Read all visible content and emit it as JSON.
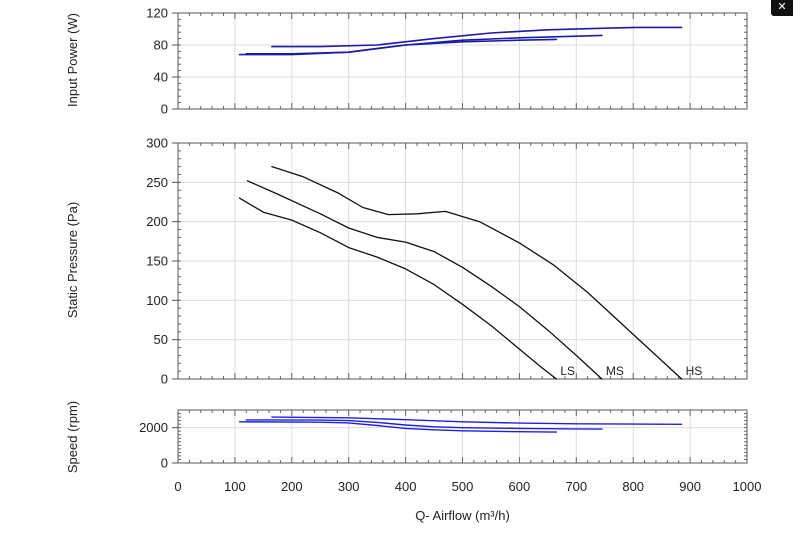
{
  "close_label": "✕",
  "chart_data": [
    {
      "type": "line",
      "id": "power",
      "ylabel": "Input Power (W)",
      "ylim": [
        0,
        120
      ],
      "yticks": [
        0,
        40,
        80,
        120
      ],
      "ytick_labels": [
        "0",
        "40",
        "80",
        "120"
      ],
      "xlim": [
        0,
        1000
      ],
      "series": [
        {
          "name": "HS",
          "x": [
            165,
            250,
            350,
            450,
            550,
            650,
            750,
            810,
            885
          ],
          "y": [
            78,
            78,
            80,
            88,
            95,
            99,
            101,
            102,
            102
          ]
        },
        {
          "name": "MS",
          "x": [
            120,
            200,
            300,
            400,
            500,
            600,
            700,
            745
          ],
          "y": [
            69,
            69,
            71,
            80,
            86,
            89,
            91,
            92
          ]
        },
        {
          "name": "LS",
          "x": [
            108,
            200,
            300,
            400,
            500,
            600,
            665
          ],
          "y": [
            68,
            68,
            71,
            80,
            84,
            86,
            87
          ]
        }
      ]
    },
    {
      "type": "line",
      "id": "pressure",
      "ylabel": "Static Pressure (Pa)",
      "ylim": [
        0,
        300
      ],
      "yticks": [
        0,
        50,
        100,
        150,
        200,
        250,
        300
      ],
      "ytick_labels": [
        "0",
        "50",
        "100",
        "150",
        "200",
        "250",
        "300"
      ],
      "xlim": [
        0,
        1000
      ],
      "curve_labels": [
        "LS",
        "MS",
        "HS"
      ],
      "series": [
        {
          "name": "LS",
          "x": [
            108,
            150,
            200,
            250,
            300,
            350,
            400,
            450,
            500,
            550,
            600,
            640,
            665
          ],
          "y": [
            230,
            212,
            202,
            186,
            167,
            155,
            140,
            120,
            95,
            68,
            38,
            14,
            0
          ]
        },
        {
          "name": "MS",
          "x": [
            122,
            175,
            250,
            300,
            350,
            400,
            450,
            500,
            550,
            600,
            650,
            700,
            745
          ],
          "y": [
            252,
            235,
            210,
            192,
            180,
            174,
            162,
            142,
            118,
            92,
            62,
            30,
            0
          ]
        },
        {
          "name": "HS",
          "x": [
            165,
            220,
            280,
            325,
            370,
            420,
            470,
            530,
            600,
            660,
            720,
            780,
            840,
            885
          ],
          "y": [
            270,
            257,
            237,
            218,
            209,
            210,
            213,
            200,
            173,
            145,
            110,
            70,
            30,
            0
          ]
        }
      ]
    },
    {
      "type": "line",
      "id": "speed",
      "ylabel": "Speed (rpm)",
      "ylim": [
        0,
        3000
      ],
      "yticks": [
        0,
        2000
      ],
      "ytick_labels": [
        "0",
        "2000"
      ],
      "xlim": [
        0,
        1000
      ],
      "xlabel": "Q- Airflow (m³/h)",
      "xticks": [
        0,
        100,
        200,
        300,
        400,
        500,
        600,
        700,
        800,
        900,
        1000
      ],
      "xtick_labels": [
        "0",
        "100",
        "200",
        "300",
        "400",
        "500",
        "600",
        "700",
        "800",
        "900",
        "1000"
      ],
      "series": [
        {
          "name": "HS",
          "x": [
            165,
            300,
            400,
            500,
            600,
            700,
            800,
            885
          ],
          "y": [
            2600,
            2560,
            2450,
            2330,
            2260,
            2220,
            2200,
            2190
          ]
        },
        {
          "name": "MS",
          "x": [
            120,
            250,
            300,
            350,
            400,
            450,
            500,
            600,
            700,
            745
          ],
          "y": [
            2440,
            2430,
            2400,
            2300,
            2150,
            2050,
            2000,
            1960,
            1930,
            1920
          ]
        },
        {
          "name": "LS",
          "x": [
            108,
            250,
            300,
            350,
            400,
            450,
            500,
            600,
            665
          ],
          "y": [
            2330,
            2310,
            2270,
            2120,
            1960,
            1880,
            1820,
            1770,
            1750
          ]
        }
      ]
    }
  ]
}
